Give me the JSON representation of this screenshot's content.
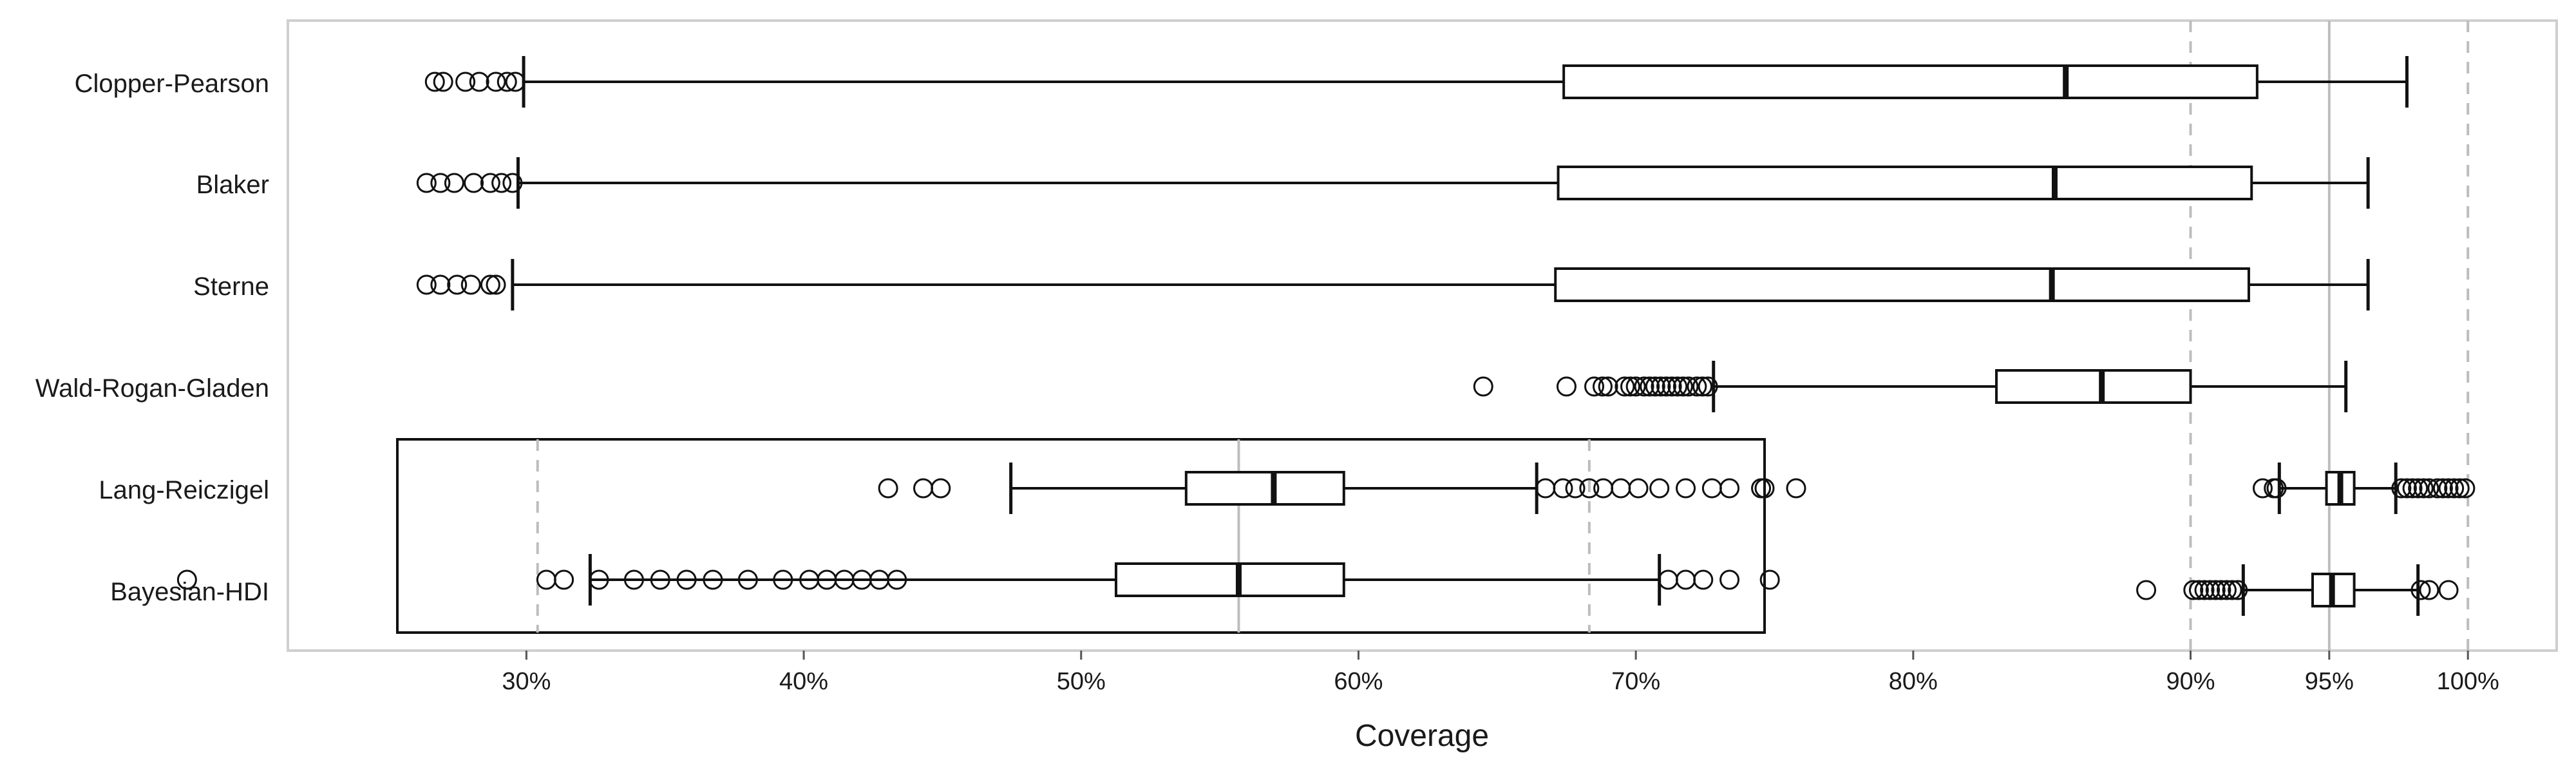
{
  "chart_data": {
    "type": "boxplot",
    "orientation": "horizontal",
    "xlabel": "Coverage",
    "ylabel": "",
    "title": "",
    "grid": false,
    "x_ticks": [
      30,
      40,
      50,
      60,
      70,
      80,
      90,
      95,
      100
    ],
    "x_tick_labels": [
      "30%",
      "40%",
      "50%",
      "60%",
      "70%",
      "80%",
      "90%",
      "95%",
      "100%"
    ],
    "xlim": [
      21.4,
      103.2
    ],
    "reference_lines": [
      {
        "value": 90,
        "style": "dashed"
      },
      {
        "value": 95,
        "style": "solid"
      },
      {
        "value": 100,
        "style": "dashed"
      }
    ],
    "series": [
      {
        "name": "Clopper-Pearson",
        "whisker_low": 29.9,
        "q1": 67.4,
        "median": 85.5,
        "q3": 92.4,
        "whisker_high": 97.8,
        "outliers": [
          26.7,
          27.0,
          27.8,
          28.3,
          28.9,
          29.3,
          29.6
        ]
      },
      {
        "name": "Blaker",
        "whisker_low": 29.7,
        "q1": 67.2,
        "median": 85.1,
        "q3": 92.2,
        "whisker_high": 96.4,
        "outliers": [
          26.4,
          26.9,
          27.4,
          28.1,
          28.7,
          29.1,
          29.5
        ]
      },
      {
        "name": "Sterne",
        "whisker_low": 29.5,
        "q1": 67.1,
        "median": 85.0,
        "q3": 92.1,
        "whisker_high": 96.4,
        "outliers": [
          26.4,
          26.9,
          27.5,
          28.0,
          28.7,
          28.9
        ]
      },
      {
        "name": "Wald-Rogan-Gladen",
        "whisker_low": 72.8,
        "q1": 83.0,
        "median": 86.8,
        "q3": 90.0,
        "whisker_high": 95.6,
        "outliers": [
          64.5,
          67.5,
          68.5,
          68.8,
          69.0,
          69.6,
          69.8,
          70.0,
          70.3,
          70.5,
          70.7,
          70.9,
          71.1,
          71.3,
          71.5,
          71.7,
          71.9,
          72.2,
          72.4,
          72.6
        ]
      },
      {
        "name": "Lang-Reiczigel",
        "whisker_low": 93.2,
        "q1": 94.9,
        "median": 95.4,
        "q3": 95.9,
        "whisker_high": 97.4,
        "outliers": [
          92.6,
          93.0,
          93.1,
          97.6,
          97.8,
          98.0,
          98.2,
          98.4,
          98.6,
          98.9,
          99.1,
          99.3,
          99.5,
          99.7,
          99.9
        ]
      },
      {
        "name": "Bayesian-HDI",
        "whisker_low": 91.9,
        "q1": 94.4,
        "median": 95.1,
        "q3": 95.9,
        "whisker_high": 98.2,
        "outliers": [
          88.4,
          90.1,
          90.3,
          90.5,
          90.7,
          90.9,
          91.1,
          91.3,
          91.5,
          91.7,
          98.3,
          98.6,
          99.3
        ]
      }
    ],
    "inset": {
      "description_rows": [
        "Lang-Reiczigel",
        "Bayesian-HDI"
      ],
      "xlim": [
        90.2,
        98.0
      ],
      "reference_lines": [
        {
          "value": 91,
          "style": "dashed"
        },
        {
          "value": 95,
          "style": "solid"
        },
        {
          "value": 97,
          "style": "dashed"
        }
      ],
      "series": [
        {
          "name": "Lang-Reiczigel",
          "whisker_low": 93.7,
          "q1": 94.7,
          "median": 95.2,
          "q3": 95.6,
          "whisker_high": 96.7,
          "outliers": [
            93.0,
            93.2,
            93.3,
            96.75,
            96.85,
            96.92,
            97.0,
            97.08,
            97.18,
            97.28,
            97.4,
            97.55,
            97.7,
            97.8,
            97.98,
            98.0,
            98.18
          ]
        },
        {
          "name": "Bayesian-HDI",
          "whisker_low": 91.3,
          "q1": 94.3,
          "median": 95.0,
          "q3": 95.6,
          "whisker_high": 97.4,
          "outliers": [
            89.0,
            91.05,
            91.15,
            91.35,
            91.55,
            91.7,
            91.85,
            92.0,
            92.2,
            92.4,
            92.55,
            92.65,
            92.75,
            92.85,
            92.95,
            93.05,
            97.45,
            97.55,
            97.65,
            97.8,
            98.03
          ]
        }
      ]
    }
  }
}
